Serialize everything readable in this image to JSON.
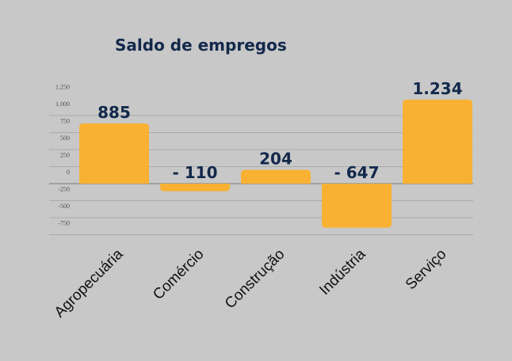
{
  "chart_data": {
    "type": "bar",
    "title": "Saldo de empregos",
    "categories": [
      "Agropecuária",
      "Comércio",
      "Construção",
      "Indústria",
      "Serviço"
    ],
    "values": [
      885,
      -110,
      204,
      -647,
      1234
    ],
    "data_labels": [
      "885",
      "- 110",
      "204",
      "- 647",
      "1.234"
    ],
    "y_ticks": [
      1250,
      1000,
      750,
      500,
      250,
      0,
      -250,
      -500,
      -750
    ],
    "y_tick_labels": [
      "1.250",
      "1.000",
      "750",
      "500",
      "250",
      "0",
      "-250",
      "-500",
      "-750"
    ],
    "ylim": [
      -750,
      1250
    ],
    "xlabel": "",
    "ylabel": "",
    "grid": true,
    "bar_color": "#f8b133",
    "text_color": "#13294b"
  }
}
